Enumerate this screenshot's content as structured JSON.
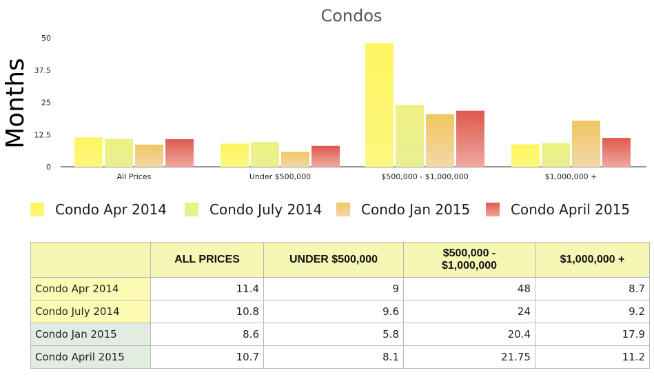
{
  "colors": {
    "series": [
      {
        "top": "#fdf55e",
        "bottom": "#fdf77f"
      },
      {
        "top": "#eef080",
        "bottom": "#e9ef92"
      },
      {
        "top": "#f1c660",
        "bottom": "#f2d8a8"
      },
      {
        "top": "#de5a4c",
        "bottom": "#efa8a0"
      }
    ],
    "title": "#4b5f46",
    "table_header_bg": "#f6f7b4",
    "table_row_label_bg_1": "#fdfbb4",
    "table_row_label_bg_2": "#e3ece0",
    "table_cell_bg": "#ffffff"
  },
  "chart_data": {
    "type": "bar",
    "title": "Condos",
    "ylabel": "Months",
    "xlabel": "",
    "ylim": [
      0,
      50
    ],
    "yticks": [
      "0",
      "12.5",
      "25",
      "37.5",
      "50"
    ],
    "grid": false,
    "legend_position": "bottom",
    "categories": [
      "All Prices",
      "Under $500,000",
      "$500,000 - $1,000,000",
      "$1,000,000 +"
    ],
    "series": [
      {
        "name": "Condo Apr 2014",
        "values": [
          11.4,
          9,
          48,
          8.7
        ]
      },
      {
        "name": "Condo July 2014",
        "values": [
          10.8,
          9.6,
          24,
          9.2
        ]
      },
      {
        "name": "Condo Jan 2015",
        "values": [
          8.6,
          5.8,
          20.4,
          17.9
        ]
      },
      {
        "name": "Condo April 2015",
        "values": [
          10.7,
          8.1,
          21.75,
          11.2
        ]
      }
    ]
  },
  "table": {
    "headers": [
      "",
      "ALL PRICES",
      "UNDER $500,000",
      "$500,000 - $1,000,000",
      "$1,000,000 +"
    ],
    "rows": [
      {
        "label": "Condo Apr 2014",
        "values": [
          "11.4",
          "9",
          "48",
          "8.7"
        ]
      },
      {
        "label": "Condo July 2014",
        "values": [
          "10.8",
          "9.6",
          "24",
          "9.2"
        ]
      },
      {
        "label": "Condo Jan 2015",
        "values": [
          "8.6",
          "5.8",
          "20.4",
          "17.9"
        ]
      },
      {
        "label": "Condo April 2015",
        "values": [
          "10.7",
          "8.1",
          "21.75",
          "11.2"
        ]
      }
    ]
  }
}
